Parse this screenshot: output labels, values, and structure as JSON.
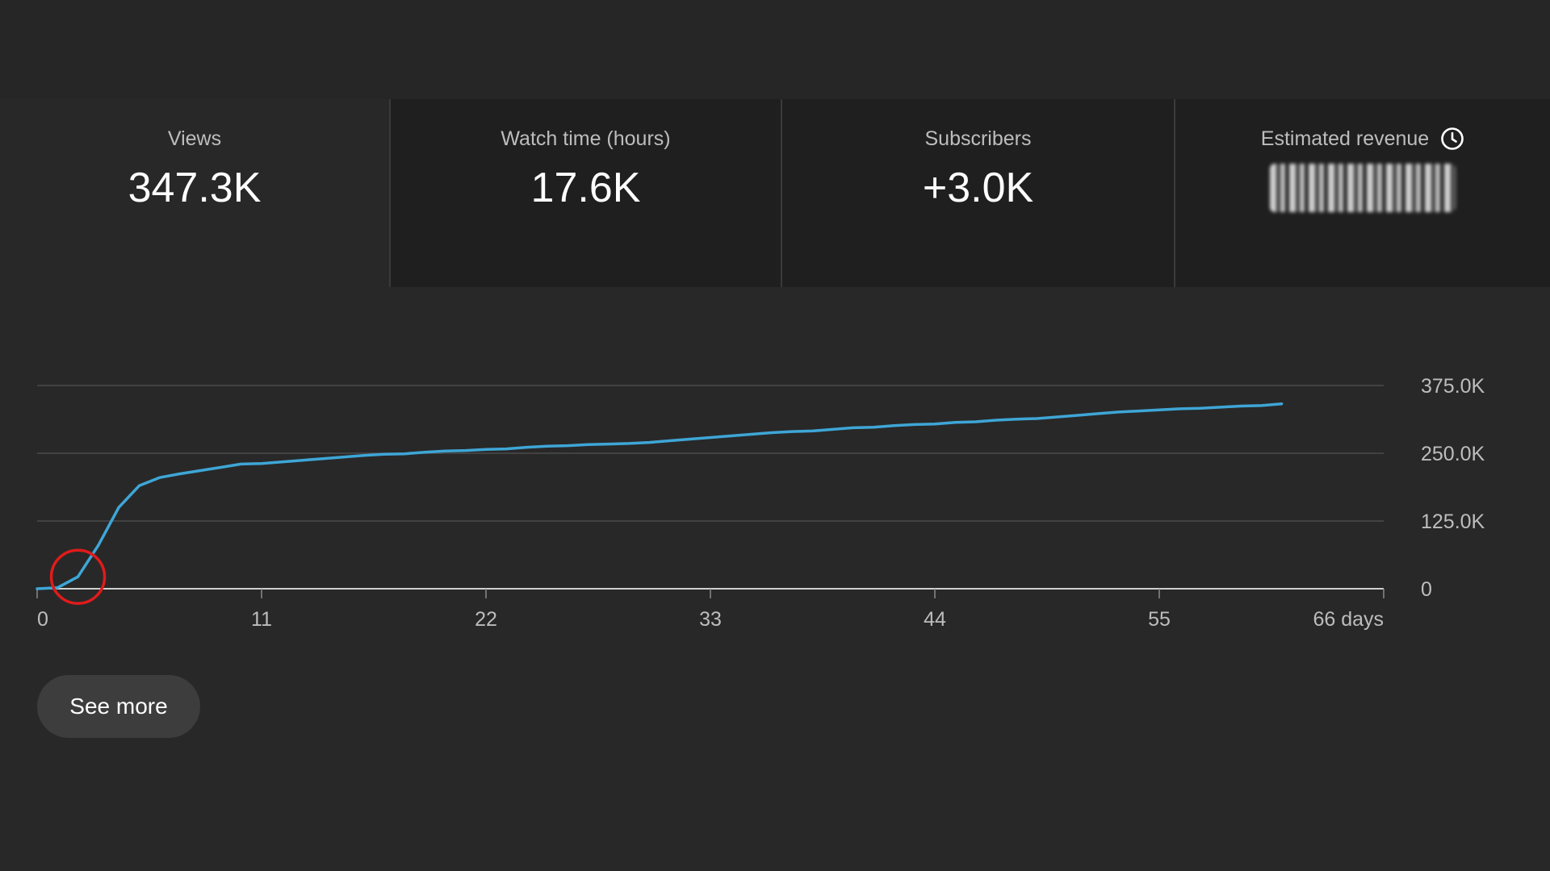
{
  "metrics": [
    {
      "label": "Views",
      "value": "347.3K",
      "active": true
    },
    {
      "label": "Watch time (hours)",
      "value": "17.6K",
      "active": false
    },
    {
      "label": "Subscribers",
      "value": "+3.0K",
      "active": false
    },
    {
      "label": "Estimated revenue",
      "value": "",
      "active": false,
      "icon": "clock-icon",
      "redacted": true
    }
  ],
  "chart_data": {
    "type": "line",
    "x_ticks": [
      "0",
      "11",
      "22",
      "33",
      "44",
      "55",
      "66 days"
    ],
    "y_ticks": [
      "375.0K",
      "250.0K",
      "125.0K",
      "0"
    ],
    "xlim": [
      0,
      66
    ],
    "ylim": [
      0,
      375000
    ],
    "grid": true,
    "series": [
      {
        "color": "#3ea6d6",
        "x": [
          0,
          1,
          2,
          3,
          4,
          5,
          6,
          7,
          8,
          9,
          10,
          11,
          12,
          13,
          14,
          15,
          16,
          17,
          18,
          19,
          20,
          21,
          22,
          23,
          24,
          25,
          26,
          27,
          28,
          29,
          30,
          31,
          32,
          33,
          34,
          35,
          36,
          37,
          38,
          39,
          40,
          41,
          42,
          43,
          44,
          45,
          46,
          47,
          48,
          49,
          50,
          51,
          52,
          53,
          54,
          55,
          56,
          57,
          58,
          59,
          60,
          61
        ],
        "values": [
          0,
          2000,
          22000,
          80000,
          150000,
          190000,
          205000,
          212000,
          218000,
          224000,
          230000,
          231000,
          234000,
          237000,
          240000,
          243000,
          246000,
          248000,
          249000,
          252000,
          254000,
          255000,
          257000,
          258000,
          261000,
          263000,
          264000,
          266000,
          267000,
          268000,
          270000,
          273000,
          276000,
          279000,
          282000,
          285000,
          288000,
          290000,
          291000,
          294000,
          297000,
          298000,
          301000,
          303000,
          304000,
          307000,
          308000,
          311000,
          313000,
          314000,
          317000,
          320000,
          323000,
          326000,
          328000,
          330000,
          332000,
          333000,
          335000,
          337000,
          338000,
          341000
        ]
      }
    ],
    "annotation": {
      "type": "circle",
      "x": 2,
      "y": 22000,
      "color": "#e01b1b"
    }
  },
  "actions": {
    "see_more": "See more"
  }
}
